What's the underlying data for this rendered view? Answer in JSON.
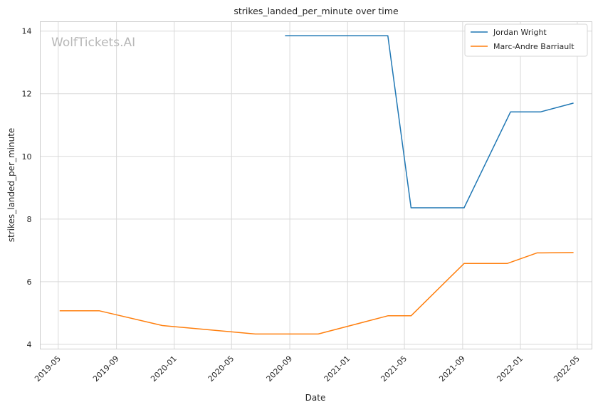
{
  "chart_data": {
    "type": "line",
    "title": "strikes_landed_per_minute over time",
    "xlabel": "Date",
    "ylabel": "strikes_landed_per_minute",
    "watermark": "WolfTickets.AI",
    "grid": true,
    "legend_position": "top-right",
    "xlim": [
      "2019-03-24",
      "2022-06-01"
    ],
    "ylim": [
      3.85,
      14.3
    ],
    "x_ticks": [
      "2019-05",
      "2019-09",
      "2020-01",
      "2020-05",
      "2020-09",
      "2021-01",
      "2021-05",
      "2021-09",
      "2022-01",
      "2022-05"
    ],
    "y_ticks": [
      4,
      6,
      8,
      10,
      12,
      14
    ],
    "series": [
      {
        "name": "Jordan Wright",
        "color": "#1f77b4",
        "points": [
          [
            "2020-08-22",
            13.85
          ],
          [
            "2021-03-27",
            13.85
          ],
          [
            "2021-05-15",
            8.36
          ],
          [
            "2021-09-04",
            8.36
          ],
          [
            "2021-12-11",
            11.42
          ],
          [
            "2022-02-12",
            11.42
          ],
          [
            "2022-04-23",
            11.7
          ]
        ]
      },
      {
        "name": "Marc-Andre Barriault",
        "color": "#ff7f0e",
        "points": [
          [
            "2019-05-04",
            5.07
          ],
          [
            "2019-07-27",
            5.07
          ],
          [
            "2019-12-07",
            4.6
          ],
          [
            "2020-06-20",
            4.33
          ],
          [
            "2020-10-31",
            4.33
          ],
          [
            "2021-03-27",
            4.91
          ],
          [
            "2021-05-15",
            4.91
          ],
          [
            "2021-09-04",
            6.58
          ],
          [
            "2021-12-04",
            6.58
          ],
          [
            "2022-02-05",
            6.92
          ],
          [
            "2022-04-23",
            6.93
          ]
        ]
      }
    ]
  }
}
